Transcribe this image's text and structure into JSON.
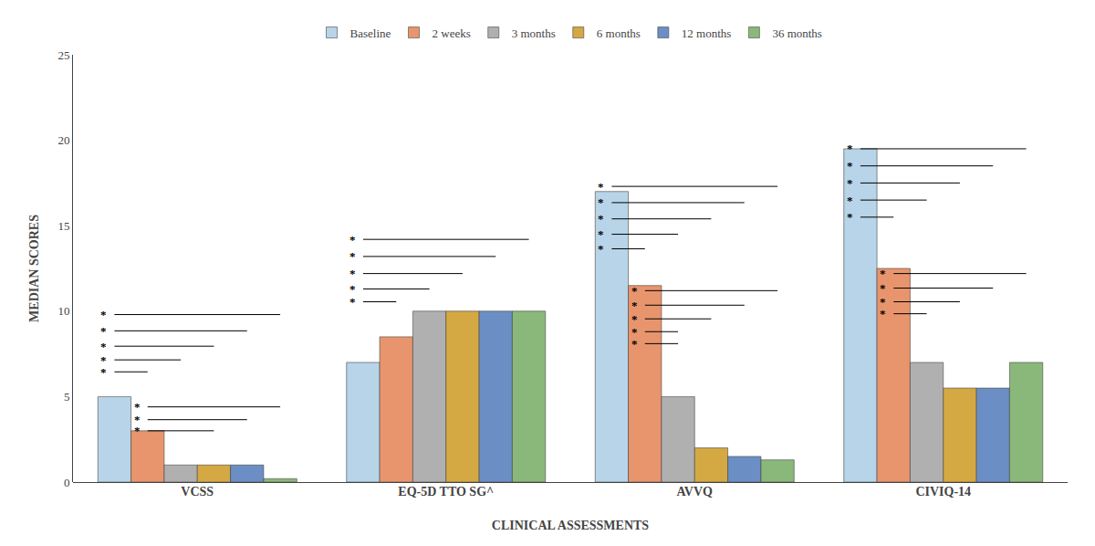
{
  "chart_data": {
    "type": "bar",
    "xlabel": "CLINICAL ASSESSMENTS",
    "ylabel": "MEDIAN SCORES",
    "categories": [
      "VCSS",
      "EQ-5D TTO SG^",
      "AVVQ",
      "CIVIQ-14"
    ],
    "series": [
      {
        "name": "Baseline",
        "color": "#b8d4e8",
        "values": [
          5.0,
          7.0,
          17.0,
          19.5
        ]
      },
      {
        "name": "2 weeks",
        "color": "#e8956d",
        "values": [
          3.0,
          8.5,
          11.5,
          12.5
        ]
      },
      {
        "name": "3 months",
        "color": "#b0b0b0",
        "values": [
          1.0,
          10.0,
          5.0,
          7.0
        ]
      },
      {
        "name": "6 months",
        "color": "#d4a843",
        "values": [
          1.0,
          10.0,
          2.0,
          5.5
        ]
      },
      {
        "name": "12 months",
        "color": "#6b8ec4",
        "values": [
          1.0,
          10.0,
          1.5,
          5.5
        ]
      },
      {
        "name": "36 months",
        "color": "#8ab87a",
        "values": [
          0.2,
          10.0,
          1.3,
          7.0
        ]
      }
    ],
    "ylim": [
      0,
      25
    ],
    "yticks": [
      0,
      5,
      10,
      15,
      20,
      25
    ],
    "grid": false,
    "legend": "top",
    "annotations": [
      {
        "text": "*",
        "category": "VCSS",
        "series": "Baseline",
        "y": 9.8
      },
      {
        "text": "*",
        "category": "VCSS",
        "series": "Baseline",
        "y": 8.85
      },
      {
        "text": "*",
        "category": "VCSS",
        "series": "Baseline",
        "y": 7.95
      },
      {
        "text": "*",
        "category": "VCSS",
        "series": "Baseline",
        "y": 7.15
      },
      {
        "text": "*",
        "category": "VCSS",
        "series": "Baseline",
        "y": 6.45
      },
      {
        "text": "*",
        "category": "VCSS",
        "series": "2 weeks",
        "y": 4.4
      },
      {
        "text": "*",
        "category": "VCSS",
        "series": "2 weeks",
        "y": 3.65
      },
      {
        "text": "*",
        "category": "VCSS",
        "series": "2 weeks",
        "y": 3.0
      },
      {
        "text": "*",
        "category": "EQ-5D TTO SG^",
        "series": "Baseline",
        "y": 14.2
      },
      {
        "text": "*",
        "category": "EQ-5D TTO SG^",
        "series": "Baseline",
        "y": 13.2
      },
      {
        "text": "*",
        "category": "EQ-5D TTO SG^",
        "series": "Baseline",
        "y": 12.2
      },
      {
        "text": "*",
        "category": "EQ-5D TTO SG^",
        "series": "Baseline",
        "y": 11.3
      },
      {
        "text": "*",
        "category": "EQ-5D TTO SG^",
        "series": "Baseline",
        "y": 10.55
      },
      {
        "text": "*",
        "category": "AVVQ",
        "series": "Baseline",
        "y": 17.3
      },
      {
        "text": "*",
        "category": "AVVQ",
        "series": "Baseline",
        "y": 16.35
      },
      {
        "text": "*",
        "category": "AVVQ",
        "series": "Baseline",
        "y": 15.4
      },
      {
        "text": "*",
        "category": "AVVQ",
        "series": "Baseline",
        "y": 14.5
      },
      {
        "text": "*",
        "category": "AVVQ",
        "series": "Baseline",
        "y": 13.65
      },
      {
        "text": "*",
        "category": "AVVQ",
        "series": "2 weeks",
        "y": 11.2
      },
      {
        "text": "*",
        "category": "AVVQ",
        "series": "2 weeks",
        "y": 10.35
      },
      {
        "text": "*",
        "category": "AVVQ",
        "series": "2 weeks",
        "y": 9.55
      },
      {
        "text": "*",
        "category": "AVVQ",
        "series": "2 weeks",
        "y": 8.8
      },
      {
        "text": "*",
        "category": "AVVQ",
        "series": "2 weeks",
        "y": 8.1
      },
      {
        "text": "*",
        "category": "CIVIQ-14",
        "series": "Baseline",
        "y": 19.5
      },
      {
        "text": "*",
        "category": "CIVIQ-14",
        "series": "Baseline",
        "y": 18.5
      },
      {
        "text": "*",
        "category": "CIVIQ-14",
        "series": "Baseline",
        "y": 17.5
      },
      {
        "text": "*",
        "category": "CIVIQ-14",
        "series": "Baseline",
        "y": 16.5
      },
      {
        "text": "*",
        "category": "CIVIQ-14",
        "series": "Baseline",
        "y": 15.5
      },
      {
        "text": "*",
        "category": "CIVIQ-14",
        "series": "2 weeks",
        "y": 12.2
      },
      {
        "text": "*",
        "category": "CIVIQ-14",
        "series": "2 weeks",
        "y": 11.35
      },
      {
        "text": "*",
        "category": "CIVIQ-14",
        "series": "2 weeks",
        "y": 10.55
      },
      {
        "text": "*",
        "category": "CIVIQ-14",
        "series": "2 weeks",
        "y": 9.85
      }
    ]
  }
}
